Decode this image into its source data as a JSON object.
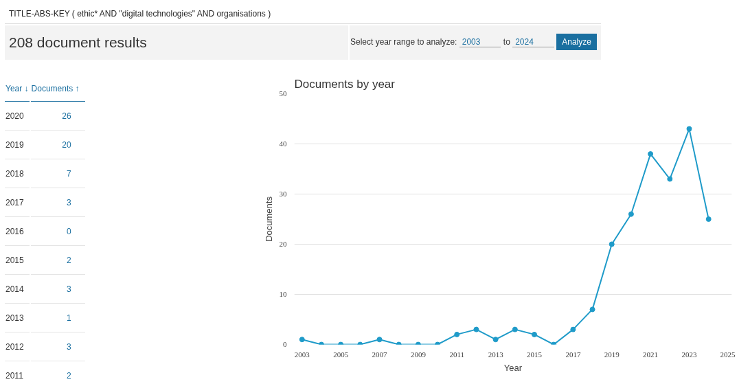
{
  "chart_data": {
    "type": "line",
    "title": "Documents by year",
    "xlabel": "Year",
    "ylabel": "Documents",
    "x": [
      2003,
      2004,
      2005,
      2006,
      2007,
      2008,
      2009,
      2010,
      2011,
      2012,
      2013,
      2014,
      2015,
      2016,
      2017,
      2018,
      2019,
      2020,
      2021,
      2022,
      2023,
      2024
    ],
    "series": [
      {
        "color": "#1f9bc9",
        "values": [
          1,
          0,
          0,
          0,
          1,
          0,
          0,
          0,
          2,
          3,
          1,
          3,
          2,
          0,
          3,
          7,
          20,
          26,
          38,
          33,
          43,
          25
        ]
      }
    ],
    "xlim": [
      2002.6,
      2025.2
    ],
    "xticks": [
      2003,
      2005,
      2007,
      2009,
      2011,
      2013,
      2015,
      2017,
      2019,
      2021,
      2023,
      2025
    ],
    "ylim": [
      0,
      50
    ],
    "yticks": [
      0,
      10,
      20,
      30,
      40,
      50
    ],
    "grid": "y",
    "marker": "circle",
    "line_style": "solid",
    "annotations": [
      "TITLE-ABS-KEY ( ethic* AND \"digital technologies\" AND organisations )",
      "208 document results",
      "Select year range to analyze:",
      "2003",
      "to",
      "2024",
      "Analyze",
      "Year ↓",
      "Documents ↑",
      "2020",
      "26",
      "2019",
      "20",
      "2018",
      "7",
      "2017",
      "3",
      "2016",
      "0",
      "2015",
      "2",
      "2014",
      "3",
      "2013",
      "1",
      "2012",
      "3",
      "2011",
      "2"
    ]
  }
}
